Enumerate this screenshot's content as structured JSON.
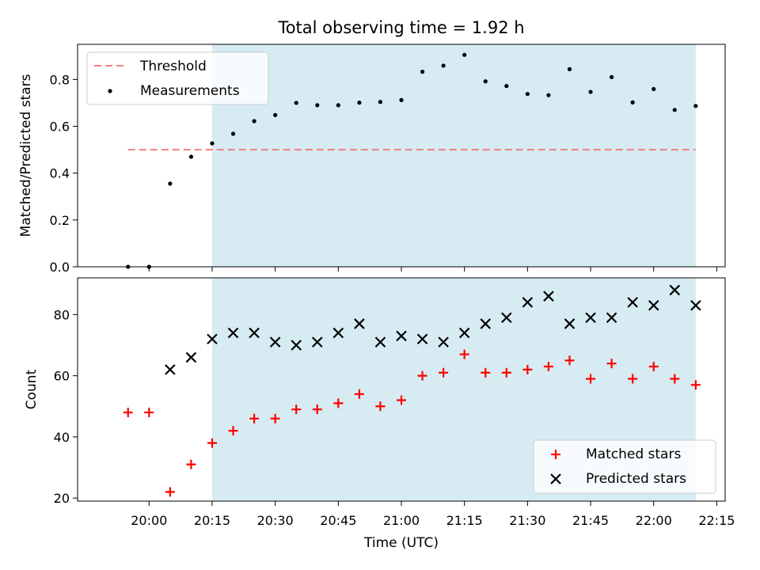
{
  "chart_data": {
    "title": "Total observing time = 1.92 h",
    "xlabel": "Time (UTC)",
    "x_range": [
      "19:43",
      "22:17"
    ],
    "x_ticks": [
      "20:00",
      "20:15",
      "20:30",
      "20:45",
      "21:00",
      "21:15",
      "21:30",
      "21:45",
      "22:00",
      "22:15"
    ],
    "times": [
      "19:55",
      "20:00",
      "20:05",
      "20:10",
      "20:15",
      "20:20",
      "20:25",
      "20:30",
      "20:35",
      "20:40",
      "20:45",
      "20:50",
      "20:55",
      "21:00",
      "21:05",
      "21:10",
      "21:15",
      "21:20",
      "21:25",
      "21:30",
      "21:35",
      "21:40",
      "21:45",
      "21:50",
      "21:55",
      "22:00",
      "22:05",
      "22:10"
    ],
    "observing_window": {
      "start": "20:15",
      "end": "22:10",
      "color": "#add8e6"
    },
    "top": {
      "type": "scatter",
      "ylabel": "Matched/Predicted stars",
      "ylim": [
        0,
        0.95
      ],
      "y_ticks": [
        "0.0",
        "0.2",
        "0.4",
        "0.6",
        "0.8"
      ],
      "legend_position": "top-left",
      "threshold": {
        "name": "Threshold",
        "value": 0.5,
        "start": "19:55",
        "end": "22:10",
        "color": "#f08080"
      },
      "series": [
        {
          "name": "Measurements",
          "marker": "dot",
          "color": "#000000",
          "values": [
            0.0,
            0.0,
            0.355,
            0.47,
            0.527,
            0.568,
            0.622,
            0.648,
            0.7,
            0.69,
            0.69,
            0.701,
            0.704,
            0.712,
            0.833,
            0.859,
            0.905,
            0.792,
            0.772,
            0.738,
            0.733,
            0.844,
            0.747,
            0.81,
            0.702,
            0.759,
            0.67,
            0.687
          ]
        }
      ]
    },
    "bottom": {
      "type": "scatter",
      "ylabel": "Count",
      "ylim": [
        19,
        92
      ],
      "y_ticks": [
        "20",
        "40",
        "60",
        "80"
      ],
      "legend_position": "bottom-right",
      "series": [
        {
          "name": "Matched stars",
          "marker": "plus",
          "color": "#ff0000",
          "values": [
            48,
            48,
            22,
            31,
            38,
            42,
            46,
            46,
            49,
            49,
            51,
            54,
            50,
            52,
            60,
            61,
            67,
            61,
            61,
            62,
            63,
            65,
            59,
            64,
            59,
            63,
            59,
            57
          ]
        },
        {
          "name": "Predicted stars",
          "marker": "x",
          "color": "#000000",
          "values": [
            null,
            null,
            62,
            66,
            72,
            74,
            74,
            71,
            70,
            71,
            74,
            77,
            71,
            73,
            72,
            71,
            74,
            77,
            79,
            84,
            86,
            77,
            79,
            79,
            84,
            83,
            88,
            83
          ]
        }
      ]
    }
  }
}
